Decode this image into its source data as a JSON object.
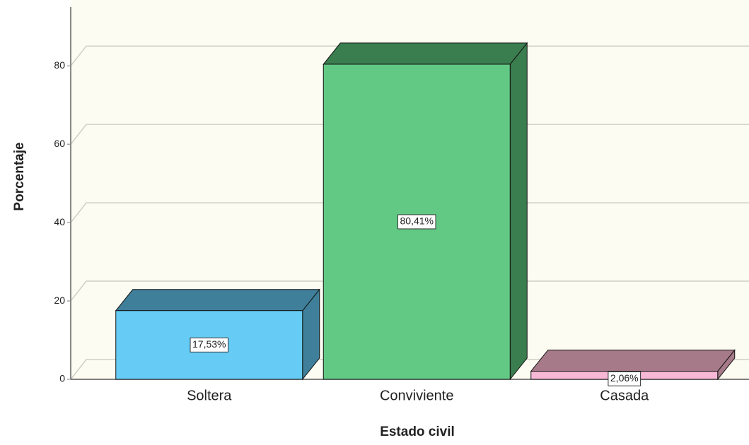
{
  "chart_data": {
    "type": "bar",
    "x_label": "Estado civil",
    "y_label": "Porcentaje",
    "categories": [
      "Soltera",
      "Conviviente",
      "Casada"
    ],
    "values": [
      17.53,
      80.41,
      2.06
    ],
    "value_labels": [
      "17,53%",
      "80,41%",
      "2,06%"
    ],
    "colors": [
      "#66ccf5",
      "#62c985",
      "#f7b8d6"
    ],
    "side_colors": [
      "#3f7f99",
      "#3a7d4f",
      "#a67a88"
    ],
    "ylim": [
      0,
      95
    ],
    "yticks": [
      0,
      20,
      40,
      60,
      80
    ],
    "grid": true
  }
}
